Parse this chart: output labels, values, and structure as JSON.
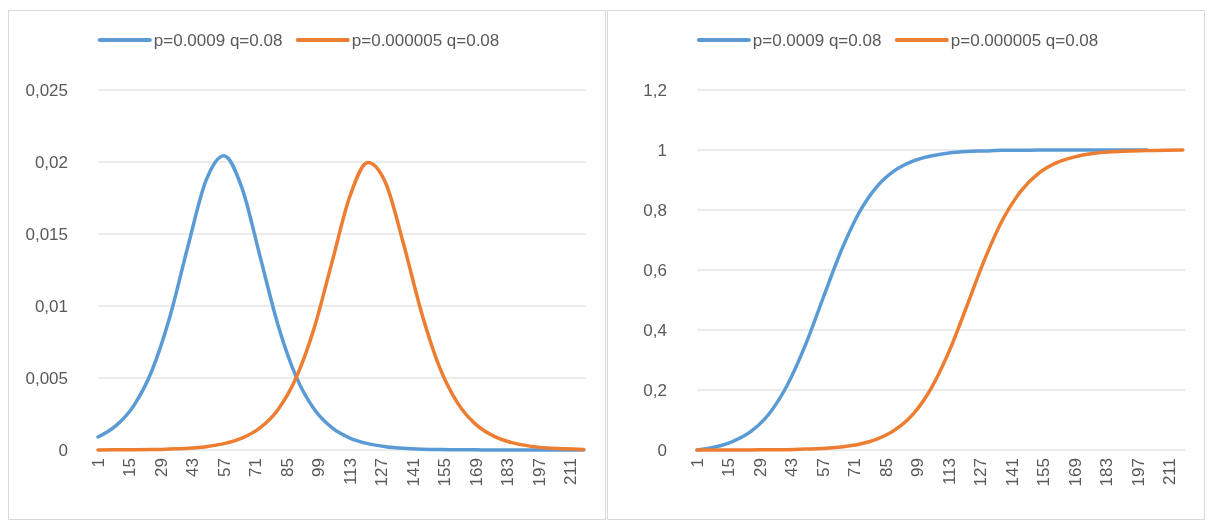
{
  "chart_data": [
    {
      "type": "line",
      "x": [
        1,
        9,
        17,
        25,
        33,
        41,
        49,
        57,
        65,
        73,
        81,
        89,
        97,
        105,
        113,
        121,
        129,
        137,
        145,
        153,
        161,
        169,
        177,
        185,
        193,
        201,
        209,
        217
      ],
      "xlim": [
        1,
        218
      ],
      "xticks": [
        1,
        15,
        29,
        43,
        57,
        71,
        85,
        99,
        113,
        127,
        141,
        155,
        169,
        183,
        197,
        211
      ],
      "ylim": [
        0,
        0.025
      ],
      "yticks": [
        {
          "value": 0,
          "label": "0"
        },
        {
          "value": 0.005,
          "label": "0,005"
        },
        {
          "value": 0.01,
          "label": "0,01"
        },
        {
          "value": 0.015,
          "label": "0,015"
        },
        {
          "value": 0.02,
          "label": "0,02"
        },
        {
          "value": 0.025,
          "label": "0,025"
        }
      ],
      "grid": "y",
      "legend": "top",
      "marker": "none",
      "line_style": "solid",
      "series": [
        {
          "name": "p=0.0009 q=0.08",
          "color": "#5b9bd5",
          "values": [
            0.0009,
            0.00169,
            0.0031,
            0.00552,
            0.00927,
            0.01415,
            0.0187,
            0.02044,
            0.0182,
            0.01348,
            0.0087,
            0.00513,
            0.00286,
            0.00155,
            0.00083,
            0.00044,
            0.00023,
            0.00012,
            6e-05,
            3e-05,
            2e-05,
            1e-05,
            0,
            0,
            0,
            0,
            0,
            0
          ]
        },
        {
          "name": "p=0.000005 q=0.08",
          "color": "#ed7d31",
          "values": [
            0,
            1e-05,
            2e-05,
            3e-05,
            7e-05,
            0.00012,
            0.00023,
            0.00044,
            0.00082,
            0.00153,
            0.0028,
            0.00498,
            0.0084,
            0.01301,
            0.01762,
            0.01997,
            0.01851,
            0.01423,
            0.00946,
            0.0057,
            0.00324,
            0.00178,
            0.00096,
            0.00051,
            0.00027,
            0.00014,
            8e-05,
            4e-05
          ]
        }
      ]
    },
    {
      "type": "line",
      "x": [
        1,
        9,
        17,
        25,
        33,
        41,
        49,
        57,
        65,
        73,
        81,
        89,
        97,
        105,
        113,
        121,
        129,
        137,
        145,
        153,
        161,
        169,
        177,
        185,
        193,
        201,
        209,
        217
      ],
      "xlim": [
        1,
        218
      ],
      "xticks": [
        1,
        15,
        29,
        43,
        57,
        71,
        85,
        99,
        113,
        127,
        141,
        155,
        169,
        183,
        197,
        211
      ],
      "ylim": [
        0,
        1.2
      ],
      "yticks": [
        {
          "value": 0,
          "label": "0"
        },
        {
          "value": 0.2,
          "label": "0,2"
        },
        {
          "value": 0.4,
          "label": "0,4"
        },
        {
          "value": 0.6,
          "label": "0,6"
        },
        {
          "value": 0.8,
          "label": "0,8"
        },
        {
          "value": 1,
          "label": "1"
        },
        {
          "value": 1.2,
          "label": "1,2"
        }
      ],
      "grid": "y",
      "legend": "top",
      "marker": "none",
      "line_style": "solid",
      "series": [
        {
          "name": "p=0.0009 q=0.08",
          "color": "#5b9bd5",
          "values": [
            0,
            0.01,
            0.029,
            0.062,
            0.12,
            0.214,
            0.346,
            0.505,
            0.662,
            0.79,
            0.878,
            0.932,
            0.963,
            0.98,
            0.99,
            0.995,
            0.997,
            0.999,
            0.999,
            1,
            1,
            1,
            1,
            1,
            1,
            1,
            null,
            null
          ]
        },
        {
          "name": "p=0.000005 q=0.08",
          "color": "#ed7d31",
          "values": [
            0,
            0,
            0,
            0,
            0.001,
            0.001,
            0.003,
            0.005,
            0.01,
            0.019,
            0.036,
            0.067,
            0.119,
            0.204,
            0.327,
            0.48,
            0.637,
            0.769,
            0.863,
            0.923,
            0.958,
            0.977,
            0.988,
            0.994,
            0.997,
            0.998,
            0.999,
            1
          ]
        }
      ]
    }
  ]
}
